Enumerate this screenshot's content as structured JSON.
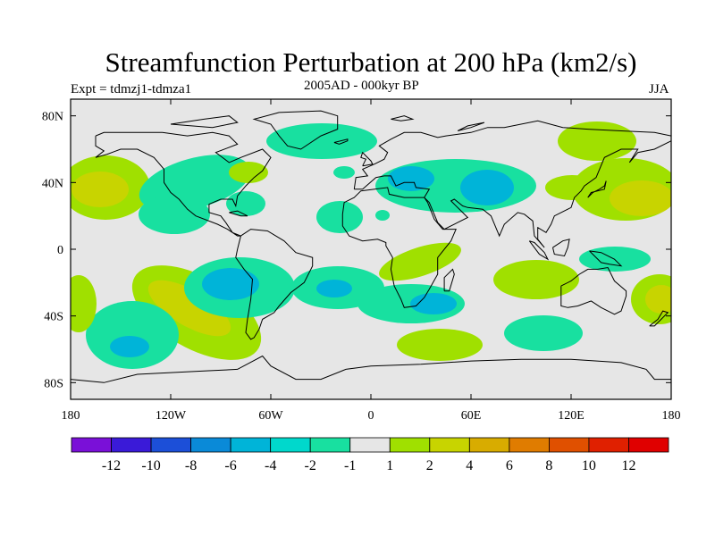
{
  "title": "Streamfunction Perturbation at 200 hPa (km2/s)",
  "left_label": "Expt = tdmzj1-tdmza1",
  "center_label": "2005AD - 000kyr BP",
  "right_label": "JJA",
  "chart_data": {
    "type": "contour-map",
    "projection": "cylindrical-equidistant",
    "lon_range": [
      -180,
      180
    ],
    "lat_range": [
      -90,
      90
    ],
    "x_ticks": [
      "180",
      "120W",
      "60W",
      "0",
      "60E",
      "120E",
      "180"
    ],
    "y_ticks": [
      "80N",
      "40N",
      "0",
      "40S",
      "80S"
    ],
    "contour_levels": [
      -12,
      -10,
      -8,
      -6,
      -4,
      -2,
      -1,
      1,
      2,
      4,
      6,
      8,
      10,
      12
    ],
    "colorbar_labels": [
      "-12",
      "-10",
      "-8",
      "-6",
      "-4",
      "-2",
      "-1",
      "1",
      "2",
      "4",
      "6",
      "8",
      "10",
      "12"
    ],
    "colors": [
      "#7a10d8",
      "#3a1ad8",
      "#1c4fd8",
      "#0a8ad8",
      "#00b4d8",
      "#00d8cc",
      "#18e0a0",
      "#e6e6e6",
      "#a0e000",
      "#c8d400",
      "#d8ac00",
      "#e07c00",
      "#e05000",
      "#e02000",
      "#e00000"
    ],
    "anomalies": [
      {
        "label": "NE Pacific high",
        "lon": -155,
        "lat": 35,
        "sign": "positive",
        "peak": 4
      },
      {
        "label": "North America",
        "lon": -95,
        "lat": 38,
        "sign": "negative",
        "peak": -2
      },
      {
        "label": "Eurasia low",
        "lon": 75,
        "lat": 38,
        "sign": "negative",
        "peak": -4
      },
      {
        "label": "Europe",
        "lon": 25,
        "lat": 45,
        "sign": "negative",
        "peak": -4
      },
      {
        "label": "East Asia high",
        "lon": 160,
        "lat": 35,
        "sign": "positive",
        "peak": 4
      },
      {
        "label": "South Pacific high",
        "lon": -120,
        "lat": -35,
        "sign": "positive",
        "peak": 4
      },
      {
        "label": "South Pacific low",
        "lon": -145,
        "lat": -55,
        "sign": "negative",
        "peak": -4
      },
      {
        "label": "SE Pacific low",
        "lon": -70,
        "lat": -18,
        "sign": "negative",
        "peak": -4
      },
      {
        "label": "South Atlantic low",
        "lon": -20,
        "lat": -22,
        "sign": "negative",
        "peak": -4
      },
      {
        "label": "Indian Ocean low",
        "lon": 40,
        "lat": -30,
        "sign": "negative",
        "peak": -4
      },
      {
        "label": "Australia high",
        "lon": 170,
        "lat": -30,
        "sign": "positive",
        "peak": 4
      }
    ]
  }
}
